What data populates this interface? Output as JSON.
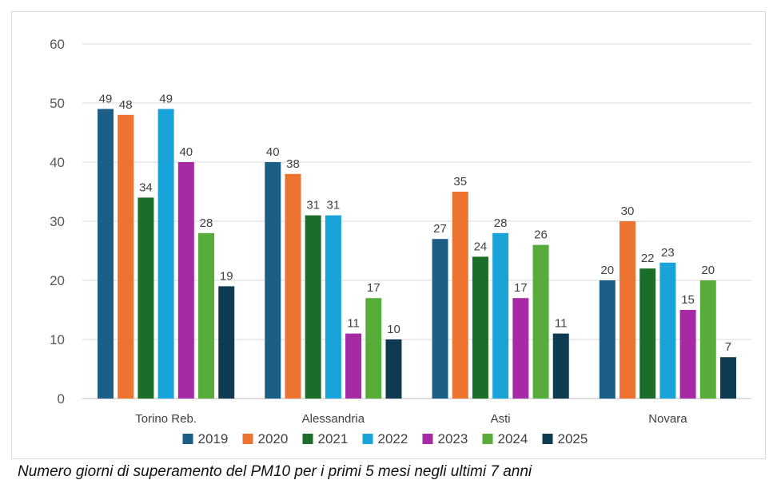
{
  "chart_data": {
    "type": "bar",
    "categories": [
      "Torino Reb.",
      "Alessandria",
      "Asti",
      "Novara"
    ],
    "series": [
      {
        "name": "2019",
        "color": "#1b5f86",
        "values": [
          49,
          40,
          27,
          20
        ]
      },
      {
        "name": "2020",
        "color": "#ed7330",
        "values": [
          48,
          38,
          35,
          30
        ]
      },
      {
        "name": "2021",
        "color": "#1b6e2a",
        "values": [
          34,
          31,
          24,
          22
        ]
      },
      {
        "name": "2022",
        "color": "#1aa3d9",
        "values": [
          49,
          31,
          28,
          23
        ]
      },
      {
        "name": "2023",
        "color": "#a52aa3",
        "values": [
          40,
          11,
          17,
          15
        ]
      },
      {
        "name": "2024",
        "color": "#58ac3a",
        "values": [
          28,
          17,
          26,
          20
        ]
      },
      {
        "name": "2025",
        "color": "#0e3a52",
        "values": [
          19,
          10,
          11,
          7
        ]
      }
    ],
    "yticks": [
      0,
      10,
      20,
      30,
      40,
      50,
      60
    ],
    "ylim": [
      0,
      60
    ],
    "grid": true,
    "legend_position": "bottom",
    "data_labels": true
  },
  "caption": "Numero giorni di superamento del PM10 per i primi 5 mesi negli ultimi 7 anni"
}
